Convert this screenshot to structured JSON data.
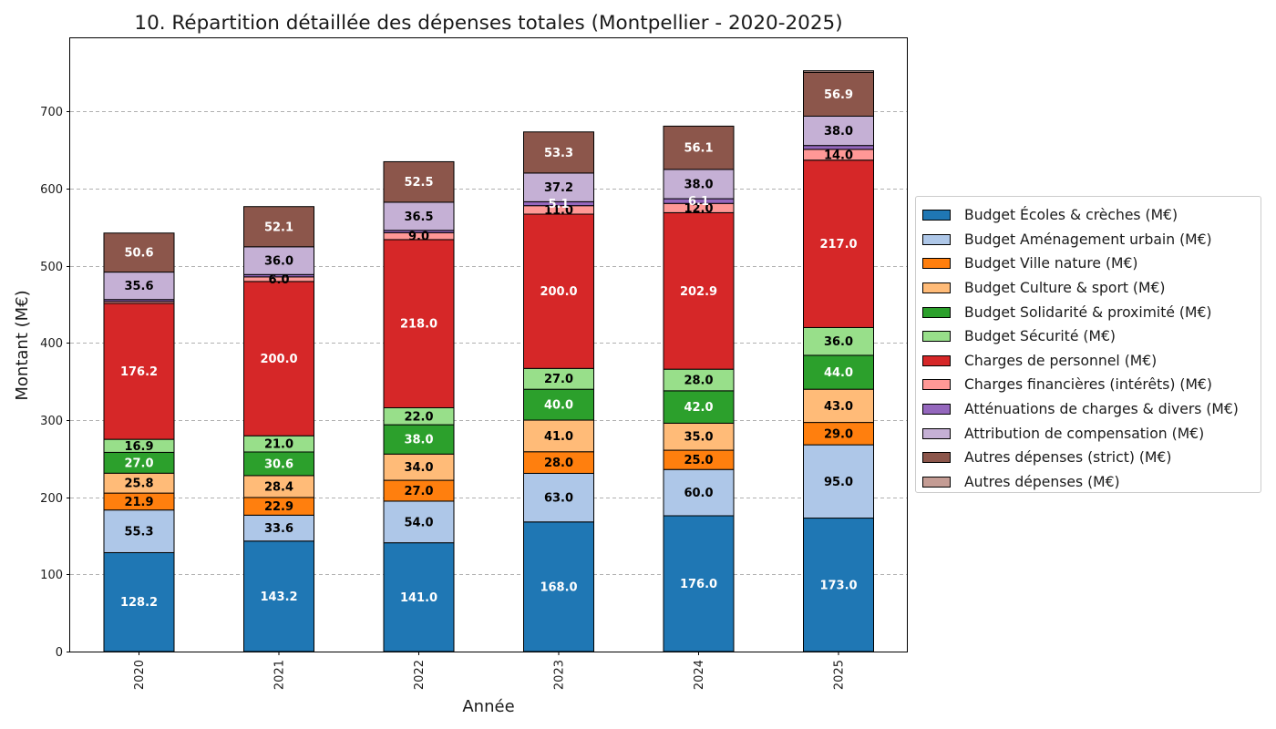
{
  "chart_data": {
    "type": "bar",
    "stacked": true,
    "title": "10. Répartition détaillée des dépenses totales (Montpellier - 2020-2025)",
    "xlabel": "Année",
    "ylabel": "Montant (M€)",
    "categories": [
      "2020",
      "2021",
      "2022",
      "2023",
      "2024",
      "2025"
    ],
    "ylim": [
      0,
      795
    ],
    "yticks": [
      0,
      100,
      200,
      300,
      400,
      500,
      600,
      700
    ],
    "grid": "horizontal dashed",
    "legend_position": "right",
    "series": [
      {
        "name": "Budget Écoles & crèches (M€)",
        "color": "#1f77b4",
        "label_color": "#ffffff",
        "values": [
          128.2,
          143.2,
          141.0,
          168.0,
          176.0,
          173.0
        ],
        "labels": [
          "128.2",
          "143.2",
          "141.0",
          "168.0",
          "176.0",
          "173.0"
        ]
      },
      {
        "name": "Budget Aménagement urbain (M€)",
        "color": "#aec7e8",
        "label_color": "#000000",
        "values": [
          55.3,
          33.6,
          54.0,
          63.0,
          60.0,
          95.0
        ],
        "labels": [
          "55.3",
          "33.6",
          "54.0",
          "63.0",
          "60.0",
          "95.0"
        ]
      },
      {
        "name": "Budget Ville nature (M€)",
        "color": "#ff7f0e",
        "label_color": "#000000",
        "values": [
          21.9,
          22.9,
          27.0,
          28.0,
          25.0,
          29.0
        ],
        "labels": [
          "21.9",
          "22.9",
          "27.0",
          "28.0",
          "25.0",
          "29.0"
        ]
      },
      {
        "name": "Budget Culture & sport (M€)",
        "color": "#ffbb78",
        "label_color": "#000000",
        "values": [
          25.8,
          28.4,
          34.0,
          41.0,
          35.0,
          43.0
        ],
        "labels": [
          "25.8",
          "28.4",
          "34.0",
          "41.0",
          "35.0",
          "43.0"
        ]
      },
      {
        "name": "Budget Solidarité & proximité (M€)",
        "color": "#2ca02c",
        "label_color": "#ffffff",
        "values": [
          27.0,
          30.6,
          38.0,
          40.0,
          42.0,
          44.0
        ],
        "labels": [
          "27.0",
          "30.6",
          "38.0",
          "40.0",
          "42.0",
          "44.0"
        ]
      },
      {
        "name": "Budget Sécurité (M€)",
        "color": "#98df8a",
        "label_color": "#000000",
        "values": [
          16.9,
          21.0,
          22.0,
          27.0,
          28.0,
          36.0
        ],
        "labels": [
          "16.9",
          "21.0",
          "22.0",
          "27.0",
          "28.0",
          "36.0"
        ]
      },
      {
        "name": "Charges de personnel (M€)",
        "color": "#d62728",
        "label_color": "#ffffff",
        "values": [
          176.2,
          200.0,
          218.0,
          200.0,
          202.9,
          217.0
        ],
        "labels": [
          "176.2",
          "200.0",
          "218.0",
          "200.0",
          "202.9",
          "217.0"
        ]
      },
      {
        "name": "Charges financières (intérêts) (M€)",
        "color": "#ff9896",
        "label_color": "#000000",
        "values": [
          2.5,
          6.0,
          9.0,
          11.0,
          12.0,
          14.0
        ],
        "labels": [
          "",
          "6.0",
          "9.0",
          "11.0",
          "12.0",
          "14.0"
        ]
      },
      {
        "name": "Atténuations de charges & divers (M€)",
        "color": "#9467bd",
        "label_color": "#ffffff",
        "values": [
          2.5,
          3.0,
          3.0,
          5.1,
          6.1,
          5.0
        ],
        "labels": [
          "",
          "",
          "",
          "5.1",
          "6.1",
          ""
        ]
      },
      {
        "name": "Attribution de compensation (M€)",
        "color": "#c5b0d5",
        "label_color": "#000000",
        "values": [
          35.6,
          36.0,
          36.5,
          37.2,
          38.0,
          38.0
        ],
        "labels": [
          "35.6",
          "36.0",
          "36.5",
          "37.2",
          "38.0",
          "38.0"
        ]
      },
      {
        "name": "Autres dépenses (strict) (M€)",
        "color": "#8c564b",
        "label_color": "#ffffff",
        "values": [
          50.6,
          52.1,
          52.5,
          53.3,
          56.1,
          56.9
        ],
        "labels": [
          "50.6",
          "52.1",
          "52.5",
          "53.3",
          "56.1",
          "56.9"
        ]
      },
      {
        "name": "Autres dépenses (M€)",
        "color": "#c49c94",
        "label_color": "#000000",
        "values": [
          0,
          0,
          0,
          0,
          0,
          2.0
        ],
        "labels": [
          "",
          "",
          "",
          "",
          "",
          ""
        ]
      }
    ]
  }
}
